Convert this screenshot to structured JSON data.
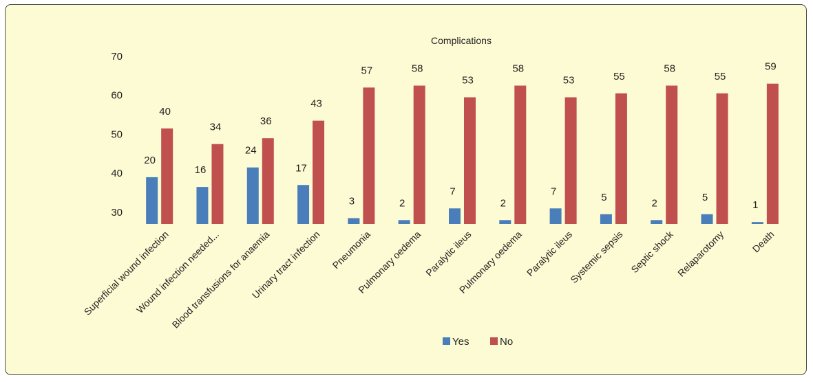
{
  "chart_data": {
    "type": "bar",
    "title": "Complications",
    "xlabel": "",
    "ylabel": "",
    "ylim": [
      27,
      70
    ],
    "yticks": [
      30,
      40,
      50,
      60,
      70
    ],
    "categories": [
      "Superficial wound infection",
      "Wound infection needed...",
      "Blood transfusions for anaemia",
      "Urinary tract infection",
      "Pneumonia",
      "Pulmonary oedema",
      "Paralytic ileus",
      "Pulmonary oedema",
      "Paralytic ileus",
      "Systemic sepsis",
      "Septic shock",
      "Relaparotomy",
      "Death"
    ],
    "series": [
      {
        "name": "Yes",
        "color": "#4a7ebb",
        "values": [
          39,
          36.5,
          41.5,
          37,
          28.5,
          28,
          31,
          28,
          31,
          29.5,
          28,
          29.5,
          27.5
        ],
        "labels": [
          "20",
          "16",
          "24",
          "17",
          "3",
          "2",
          "7",
          "2",
          "7",
          "5",
          "2",
          "5",
          "1"
        ]
      },
      {
        "name": "No",
        "color": "#c0504d",
        "values": [
          51.5,
          47.5,
          49,
          53.5,
          62,
          62.5,
          59.5,
          62.5,
          59.5,
          60.5,
          62.5,
          60.5,
          63
        ],
        "labels": [
          "40",
          "34",
          "36",
          "43",
          "57",
          "58",
          "53",
          "58",
          "53",
          "55",
          "58",
          "55",
          "59"
        ]
      }
    ],
    "grid": false,
    "legend_position": "bottom"
  }
}
